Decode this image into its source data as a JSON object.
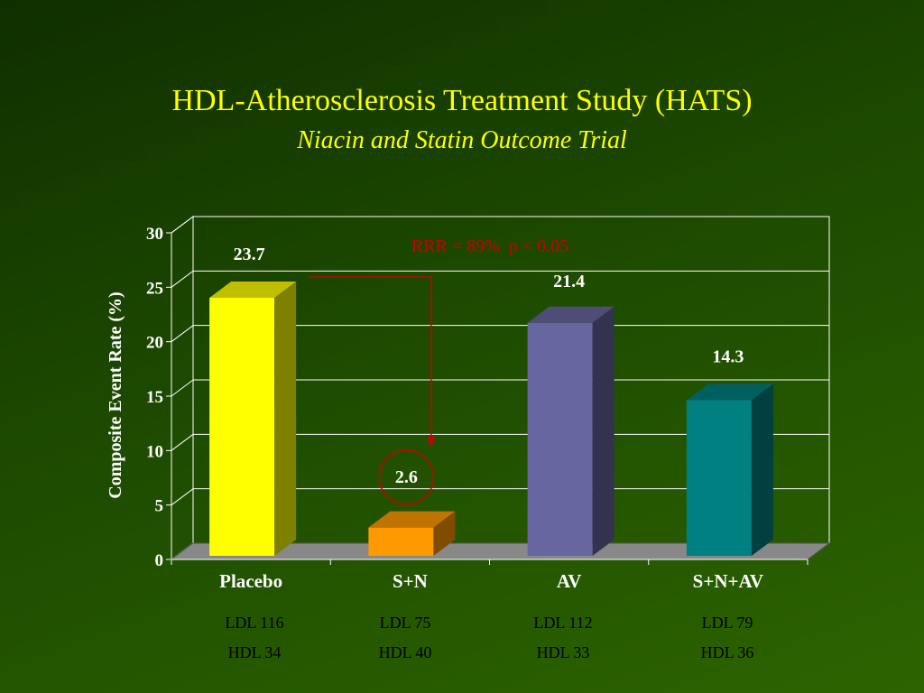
{
  "slide": {
    "title": "HDL-Atherosclerosis Treatment Study (HATS)",
    "subtitle": "Niacin and Statin Outcome Trial"
  },
  "colors": {
    "title": "#ffff00",
    "placebo": "#ffff00",
    "sn": "#ff9900",
    "av": "#6666a0",
    "snav": "#008080",
    "annotation": "#cc0000"
  },
  "chart_data": {
    "type": "bar",
    "title": "",
    "ylabel": "Composite Event Rate (%)",
    "xlabel": "",
    "categories": [
      "Placebo",
      "S+N",
      "AV",
      "S+N+AV"
    ],
    "values": [
      23.7,
      2.6,
      21.4,
      14.3
    ],
    "value_labels": [
      "23.7",
      "2.6",
      "21.4",
      "14.3"
    ],
    "ylim": [
      0,
      30
    ],
    "yticks": [
      0,
      5,
      10,
      15,
      20,
      25,
      30
    ],
    "grid": true,
    "annotation": "RRR = 89%  p < 0.05"
  },
  "lipids": [
    {
      "ldl": "LDL 116",
      "hdl": "HDL 34"
    },
    {
      "ldl": "LDL 75",
      "hdl": "HDL 40"
    },
    {
      "ldl": "LDL 112",
      "hdl": "HDL 33"
    },
    {
      "ldl": "LDL 79",
      "hdl": "HDL 36"
    }
  ]
}
